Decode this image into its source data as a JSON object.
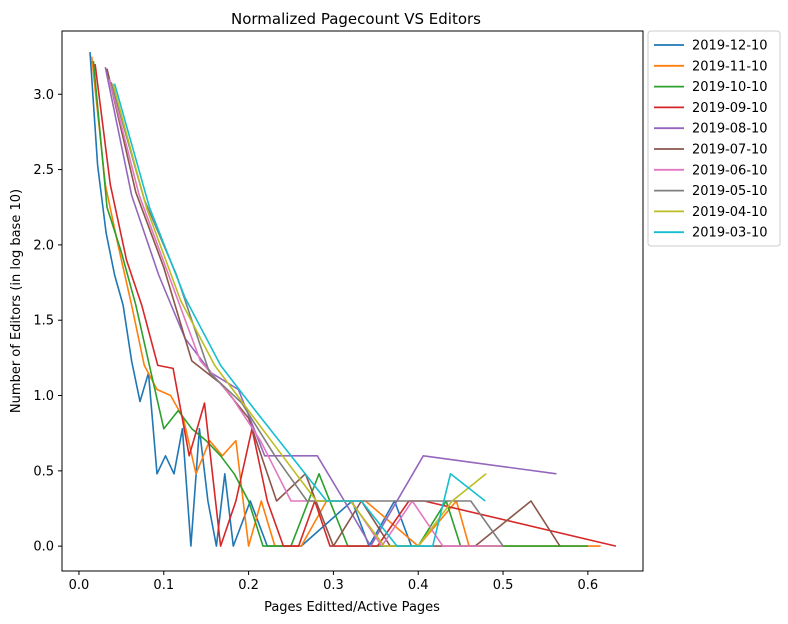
{
  "chart_data": {
    "type": "line",
    "title": "Normalized Pagecount VS Editors",
    "xlabel": "Pages Editted/Active Pages",
    "ylabel": "Number of Editors (in log base 10)",
    "xlim": [
      -0.02,
      0.665
    ],
    "ylim": [
      -0.165,
      3.42
    ],
    "xticks": [
      0.0,
      0.1,
      0.2,
      0.3,
      0.4,
      0.5,
      0.6
    ],
    "xtick_labels": [
      "0.0",
      "0.1",
      "0.2",
      "0.3",
      "0.4",
      "0.5",
      "0.6"
    ],
    "yticks": [
      0.0,
      0.5,
      1.0,
      1.5,
      2.0,
      2.5,
      3.0
    ],
    "ytick_labels": [
      "0.0",
      "0.5",
      "1.0",
      "1.5",
      "2.0",
      "2.5",
      "3.0"
    ],
    "grid": false,
    "legend_position": "outside-top-right",
    "series": [
      {
        "name": "2019-12-10",
        "color": "#1f77b4",
        "points": [
          [
            0.013,
            3.28
          ],
          [
            0.022,
            2.53
          ],
          [
            0.032,
            2.08
          ],
          [
            0.042,
            1.8
          ],
          [
            0.052,
            1.6
          ],
          [
            0.062,
            1.23
          ],
          [
            0.072,
            0.96
          ],
          [
            0.082,
            1.15
          ],
          [
            0.092,
            0.48
          ],
          [
            0.102,
            0.6
          ],
          [
            0.112,
            0.48
          ],
          [
            0.122,
            0.78
          ],
          [
            0.132,
            0.0
          ],
          [
            0.142,
            0.78
          ],
          [
            0.152,
            0.3
          ],
          [
            0.162,
            0.0
          ],
          [
            0.172,
            0.48
          ],
          [
            0.182,
            0.0
          ],
          [
            0.202,
            0.3
          ],
          [
            0.222,
            0.0
          ],
          [
            0.262,
            0.0
          ],
          [
            0.322,
            0.3
          ],
          [
            0.342,
            0.0
          ],
          [
            0.372,
            0.3
          ],
          [
            0.392,
            0.0
          ]
        ]
      },
      {
        "name": "2019-11-10",
        "color": "#ff7f0e",
        "points": [
          [
            0.015,
            3.25
          ],
          [
            0.031,
            2.4
          ],
          [
            0.046,
            2.0
          ],
          [
            0.062,
            1.6
          ],
          [
            0.077,
            1.2
          ],
          [
            0.092,
            1.04
          ],
          [
            0.108,
            1.0
          ],
          [
            0.123,
            0.85
          ],
          [
            0.138,
            0.48
          ],
          [
            0.154,
            0.7
          ],
          [
            0.169,
            0.6
          ],
          [
            0.185,
            0.7
          ],
          [
            0.2,
            0.0
          ],
          [
            0.215,
            0.3
          ],
          [
            0.231,
            0.0
          ],
          [
            0.262,
            0.0
          ],
          [
            0.292,
            0.3
          ],
          [
            0.338,
            0.3
          ],
          [
            0.4,
            0.0
          ],
          [
            0.445,
            0.3
          ],
          [
            0.46,
            0.0
          ],
          [
            0.615,
            0.0
          ]
        ]
      },
      {
        "name": "2019-10-10",
        "color": "#2ca02c",
        "points": [
          [
            0.017,
            3.22
          ],
          [
            0.033,
            2.25
          ],
          [
            0.05,
            1.95
          ],
          [
            0.067,
            1.6
          ],
          [
            0.083,
            1.2
          ],
          [
            0.1,
            0.78
          ],
          [
            0.117,
            0.9
          ],
          [
            0.133,
            0.78
          ],
          [
            0.15,
            0.7
          ],
          [
            0.167,
            0.6
          ],
          [
            0.183,
            0.48
          ],
          [
            0.2,
            0.3
          ],
          [
            0.217,
            0.0
          ],
          [
            0.25,
            0.0
          ],
          [
            0.283,
            0.48
          ],
          [
            0.317,
            0.0
          ],
          [
            0.4,
            0.0
          ],
          [
            0.433,
            0.3
          ],
          [
            0.45,
            0.0
          ],
          [
            0.6,
            0.0
          ]
        ]
      },
      {
        "name": "2019-09-10",
        "color": "#d62728",
        "points": [
          [
            0.019,
            3.2
          ],
          [
            0.037,
            2.4
          ],
          [
            0.056,
            1.9
          ],
          [
            0.074,
            1.6
          ],
          [
            0.093,
            1.2
          ],
          [
            0.111,
            1.18
          ],
          [
            0.13,
            0.6
          ],
          [
            0.148,
            0.95
          ],
          [
            0.167,
            0.0
          ],
          [
            0.185,
            0.3
          ],
          [
            0.204,
            0.78
          ],
          [
            0.222,
            0.3
          ],
          [
            0.241,
            0.0
          ],
          [
            0.259,
            0.0
          ],
          [
            0.278,
            0.3
          ],
          [
            0.296,
            0.0
          ],
          [
            0.352,
            0.0
          ],
          [
            0.389,
            0.3
          ],
          [
            0.407,
            0.3
          ],
          [
            0.633,
            0.0
          ]
        ]
      },
      {
        "name": "2019-08-10",
        "color": "#9467bd",
        "points": [
          [
            0.031,
            3.18
          ],
          [
            0.062,
            2.33
          ],
          [
            0.094,
            1.8
          ],
          [
            0.125,
            1.38
          ],
          [
            0.156,
            1.15
          ],
          [
            0.188,
            1.04
          ],
          [
            0.219,
            0.6
          ],
          [
            0.25,
            0.6
          ],
          [
            0.281,
            0.6
          ],
          [
            0.313,
            0.3
          ],
          [
            0.344,
            0.0
          ],
          [
            0.406,
            0.6
          ],
          [
            0.563,
            0.48
          ]
        ]
      },
      {
        "name": "2019-07-10",
        "color": "#8c564b",
        "points": [
          [
            0.033,
            3.17
          ],
          [
            0.067,
            2.35
          ],
          [
            0.1,
            1.85
          ],
          [
            0.133,
            1.23
          ],
          [
            0.167,
            1.08
          ],
          [
            0.2,
            0.85
          ],
          [
            0.233,
            0.3
          ],
          [
            0.267,
            0.48
          ],
          [
            0.3,
            0.0
          ],
          [
            0.333,
            0.3
          ],
          [
            0.367,
            0.0
          ],
          [
            0.433,
            0.0
          ],
          [
            0.467,
            0.0
          ],
          [
            0.533,
            0.3
          ],
          [
            0.567,
            0.0
          ]
        ]
      },
      {
        "name": "2019-06-10",
        "color": "#e377c2",
        "points": [
          [
            0.036,
            3.1
          ],
          [
            0.071,
            2.33
          ],
          [
            0.107,
            1.78
          ],
          [
            0.143,
            1.23
          ],
          [
            0.179,
            1.0
          ],
          [
            0.214,
            0.7
          ],
          [
            0.25,
            0.3
          ],
          [
            0.286,
            0.3
          ],
          [
            0.321,
            0.3
          ],
          [
            0.357,
            0.0
          ],
          [
            0.393,
            0.3
          ],
          [
            0.429,
            0.0
          ],
          [
            0.464,
            0.0
          ],
          [
            0.5,
            0.0
          ]
        ]
      },
      {
        "name": "2019-05-10",
        "color": "#7f7f7f",
        "points": [
          [
            0.038,
            3.08
          ],
          [
            0.077,
            2.3
          ],
          [
            0.115,
            1.8
          ],
          [
            0.154,
            1.15
          ],
          [
            0.192,
            0.95
          ],
          [
            0.231,
            0.6
          ],
          [
            0.269,
            0.3
          ],
          [
            0.308,
            0.3
          ],
          [
            0.346,
            0.3
          ],
          [
            0.385,
            0.3
          ],
          [
            0.423,
            0.3
          ],
          [
            0.462,
            0.3
          ],
          [
            0.5,
            0.0
          ]
        ]
      },
      {
        "name": "2019-04-10",
        "color": "#bcbd22",
        "points": [
          [
            0.04,
            3.07
          ],
          [
            0.08,
            2.24
          ],
          [
            0.12,
            1.63
          ],
          [
            0.16,
            1.2
          ],
          [
            0.2,
            0.9
          ],
          [
            0.24,
            0.6
          ],
          [
            0.28,
            0.3
          ],
          [
            0.32,
            0.3
          ],
          [
            0.36,
            0.0
          ],
          [
            0.4,
            0.0
          ],
          [
            0.44,
            0.3
          ],
          [
            0.48,
            0.48
          ]
        ]
      },
      {
        "name": "2019-03-10",
        "color": "#17becf",
        "points": [
          [
            0.042,
            3.07
          ],
          [
            0.083,
            2.25
          ],
          [
            0.125,
            1.65
          ],
          [
            0.167,
            1.2
          ],
          [
            0.208,
            0.9
          ],
          [
            0.25,
            0.6
          ],
          [
            0.292,
            0.3
          ],
          [
            0.333,
            0.3
          ],
          [
            0.375,
            0.0
          ],
          [
            0.417,
            0.0
          ],
          [
            0.438,
            0.48
          ],
          [
            0.479,
            0.3
          ]
        ]
      }
    ]
  }
}
